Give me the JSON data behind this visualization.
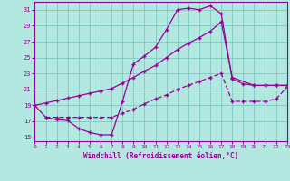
{
  "xlabel": "Windchill (Refroidissement éolien,°C)",
  "background_color": "#b2e8e0",
  "grid_color": "#80c8c0",
  "line_color": "#990099",
  "xlim": [
    0,
    23
  ],
  "ylim": [
    14.5,
    32.0
  ],
  "yticks": [
    15,
    17,
    19,
    21,
    23,
    25,
    27,
    29,
    31
  ],
  "xticks": [
    0,
    1,
    2,
    3,
    4,
    5,
    6,
    7,
    8,
    9,
    10,
    11,
    12,
    13,
    14,
    15,
    16,
    17,
    18,
    19,
    20,
    21,
    22,
    23
  ],
  "curve1_x": [
    0,
    1,
    2,
    3,
    4,
    5,
    6,
    7,
    8,
    9,
    10,
    11,
    12,
    13,
    14,
    15,
    16,
    17,
    18,
    19,
    20,
    21,
    22,
    23
  ],
  "curve1_y": [
    19.0,
    17.5,
    17.2,
    17.1,
    16.1,
    15.6,
    15.3,
    15.3,
    19.5,
    24.2,
    25.2,
    26.3,
    28.5,
    31.0,
    31.2,
    31.0,
    31.5,
    30.5,
    22.3,
    21.7,
    21.5,
    21.5,
    21.5,
    21.5
  ],
  "curve2_x": [
    0,
    1,
    2,
    3,
    4,
    5,
    6,
    7,
    8,
    9,
    10,
    11,
    12,
    13,
    14,
    15,
    16,
    17,
    18,
    20,
    21,
    22,
    23
  ],
  "curve2_y": [
    19.0,
    19.3,
    19.6,
    19.9,
    20.2,
    20.5,
    20.8,
    21.1,
    21.8,
    22.5,
    23.3,
    24.0,
    25.0,
    26.0,
    26.8,
    27.5,
    28.3,
    29.5,
    22.5,
    21.5,
    21.5,
    21.5,
    21.5
  ],
  "curve3_x": [
    1,
    2,
    3,
    4,
    5,
    6,
    7,
    8,
    9,
    10,
    11,
    12,
    13,
    14,
    15,
    16,
    17,
    18,
    19,
    20,
    21,
    22,
    23
  ],
  "curve3_y": [
    17.5,
    17.5,
    17.5,
    17.5,
    17.5,
    17.5,
    17.5,
    18.0,
    18.5,
    19.2,
    19.8,
    20.3,
    21.0,
    21.5,
    22.0,
    22.5,
    23.0,
    19.5,
    19.5,
    19.5,
    19.5,
    19.8,
    21.3
  ]
}
